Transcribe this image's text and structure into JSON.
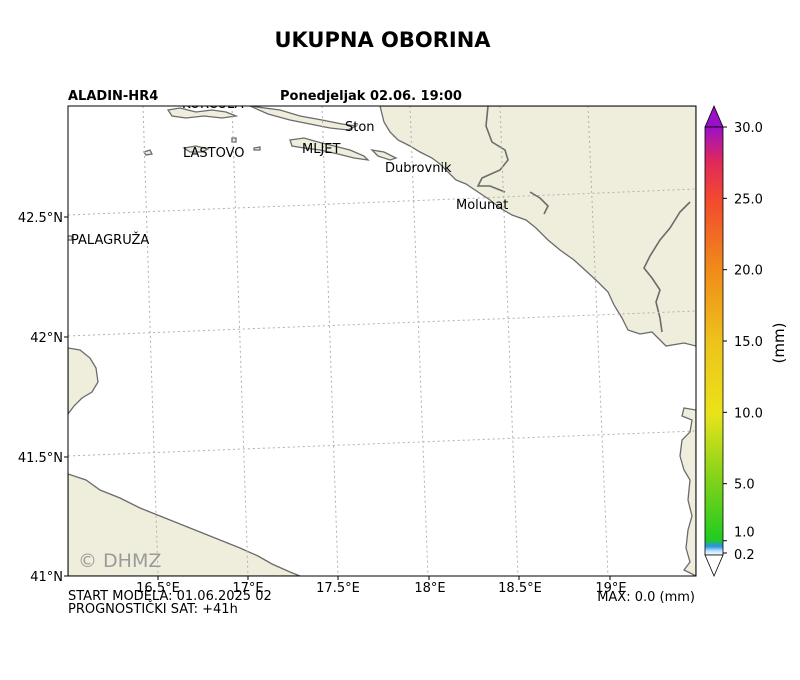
{
  "title": "UKUPNA OBORINA",
  "model_name": "ALADIN-HR4",
  "forecast_time": "Ponedjeljak 02.06. 19:00",
  "watermark": "© DHMZ",
  "footer": {
    "model_start": "START MODELA: 01.06.2025 02",
    "forecast_hour": "PROGNOSTIČKI SAT: +41h",
    "max_value": "MAX: 0.0 (mm)"
  },
  "map": {
    "background_color": "#ffffff",
    "land_color": "#efeedc",
    "coast_color": "#6b6b6b",
    "place_labels": [
      "KORČULA",
      "LASTOVO",
      "MLJET",
      "Ston",
      "Dubrovnik",
      "Molunat",
      "PALAGRUŽA"
    ],
    "lat_ticks": [
      "42.5°N",
      "42°N",
      "41.5°N",
      "41°N"
    ],
    "lon_ticks": [
      "16.5°E",
      "17°E",
      "17.5°E",
      "18°E",
      "18.5°E",
      "19°E"
    ]
  },
  "colorbar": {
    "unit": "(mm)",
    "tick_labels": [
      "30.0",
      "25.0",
      "20.0",
      "15.0",
      "10.0",
      "5.0",
      "1.0",
      "0.2"
    ],
    "tick_values": [
      30,
      25,
      20,
      15,
      10,
      5,
      1,
      0.2
    ],
    "range": [
      0,
      30
    ],
    "colors": [
      "#ffffff",
      "#2f8fe8",
      "#1fcc1f",
      "#7dd21a",
      "#e9e31a",
      "#f0a51a",
      "#f25a2a",
      "#e0285a",
      "#9a10c8"
    ]
  }
}
